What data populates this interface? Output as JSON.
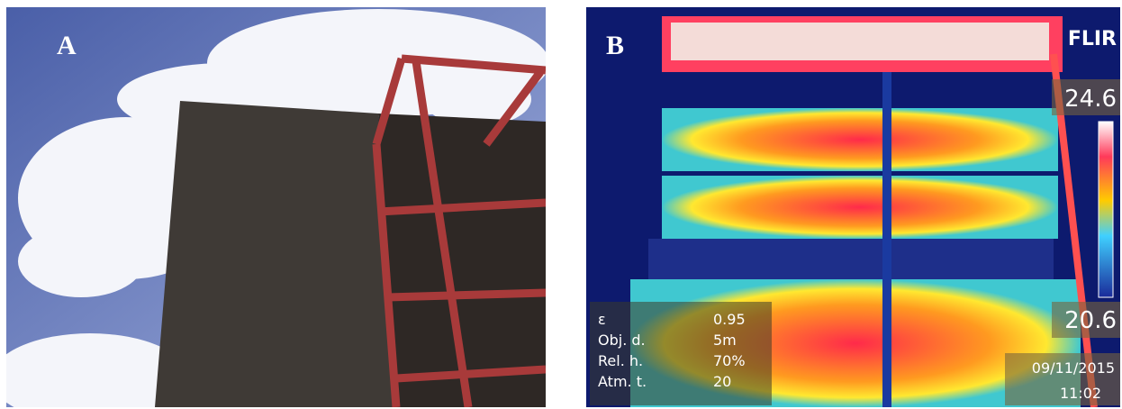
{
  "panels": [
    {
      "label": "A"
    },
    {
      "label": "B",
      "logo": "FLIR",
      "scale_max": "24.6",
      "scale_min": "20.6",
      "params": [
        {
          "name": "ε",
          "value": "0.95"
        },
        {
          "name": "Obj. d.",
          "value": "5m"
        },
        {
          "name": "Rel. h.",
          "value": "70%"
        },
        {
          "name": "Atm. t.",
          "value": "20"
        }
      ],
      "date": "09/11/2015",
      "time": "11:02"
    }
  ]
}
